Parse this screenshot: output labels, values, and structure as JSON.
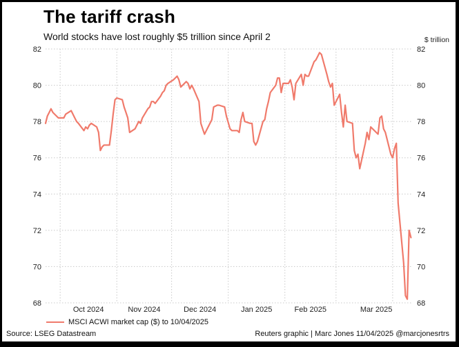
{
  "header": {
    "title": "The tariff crash",
    "subtitle": "World stocks have lost roughly $5 trillion since April 2",
    "unit_label": "$ trillion"
  },
  "footer": {
    "legend_label": "MSCI ACWI market cap ($) to 10/04/2025",
    "source": "Source: LSEG Datastream",
    "credit": "Reuters graphic | Marc Jones 11/04/2025 @marcjonesrtrs"
  },
  "colors": {
    "series": "#f07a6b",
    "grid": "#c8c8c8",
    "text": "#222222"
  },
  "chart_data": {
    "type": "line",
    "title": "The tariff crash",
    "subtitle": "World stocks have lost roughly $5 trillion since April 2",
    "ylabel": "$ trillion",
    "ylim": [
      68,
      82
    ],
    "yticks": [
      68,
      70,
      72,
      74,
      76,
      78,
      80,
      82
    ],
    "y_axes": "both",
    "grid": "dotted",
    "legend_position": "bottom-left",
    "xlim": [
      "2024-09-23",
      "2025-04-11"
    ],
    "xtick_labels": [
      "Oct 2024",
      "Nov 2024",
      "Dec 2024",
      "Jan 2025",
      "Feb 2025",
      "Mar 2025"
    ],
    "xtick_dates": [
      "2024-10-01",
      "2024-11-01",
      "2024-12-01",
      "2025-01-01",
      "2025-02-01",
      "2025-03-01"
    ],
    "series": [
      {
        "name": "MSCI ACWI market cap ($) to 10/04/2025",
        "color": "#f07a6b",
        "points": [
          [
            "2024-09-23",
            77.9
          ],
          [
            "2024-09-24",
            78.3
          ],
          [
            "2024-09-25",
            78.5
          ],
          [
            "2024-09-26",
            78.7
          ],
          [
            "2024-09-27",
            78.5
          ],
          [
            "2024-09-30",
            78.2
          ],
          [
            "2024-10-01",
            78.2
          ],
          [
            "2024-10-02",
            78.2
          ],
          [
            "2024-10-03",
            78.2
          ],
          [
            "2024-10-04",
            78.4
          ],
          [
            "2024-10-07",
            78.6
          ],
          [
            "2024-10-08",
            78.4
          ],
          [
            "2024-10-09",
            78.2
          ],
          [
            "2024-10-10",
            78.0
          ],
          [
            "2024-10-11",
            77.9
          ],
          [
            "2024-10-14",
            77.5
          ],
          [
            "2024-10-15",
            77.7
          ],
          [
            "2024-10-16",
            77.6
          ],
          [
            "2024-10-17",
            77.8
          ],
          [
            "2024-10-18",
            77.9
          ],
          [
            "2024-10-21",
            77.7
          ],
          [
            "2024-10-22",
            77.4
          ],
          [
            "2024-10-23",
            76.4
          ],
          [
            "2024-10-24",
            76.6
          ],
          [
            "2024-10-25",
            76.7
          ],
          [
            "2024-10-28",
            76.7
          ],
          [
            "2024-10-29",
            77.5
          ],
          [
            "2024-10-30",
            78.4
          ],
          [
            "2024-10-31",
            79.2
          ],
          [
            "2024-11-01",
            79.3
          ],
          [
            "2024-11-04",
            79.2
          ],
          [
            "2024-11-05",
            78.8
          ],
          [
            "2024-11-06",
            78.5
          ],
          [
            "2024-11-07",
            78.2
          ],
          [
            "2024-11-08",
            77.4
          ],
          [
            "2024-11-11",
            77.6
          ],
          [
            "2024-11-12",
            77.8
          ],
          [
            "2024-11-13",
            78.0
          ],
          [
            "2024-11-14",
            77.9
          ],
          [
            "2024-11-15",
            78.2
          ],
          [
            "2024-11-18",
            78.7
          ],
          [
            "2024-11-19",
            78.8
          ],
          [
            "2024-11-20",
            79.1
          ],
          [
            "2024-11-21",
            79.1
          ],
          [
            "2024-11-22",
            79.0
          ],
          [
            "2024-11-25",
            79.4
          ],
          [
            "2024-11-26",
            79.6
          ],
          [
            "2024-11-27",
            79.7
          ],
          [
            "2024-11-28",
            80.0
          ],
          [
            "2024-11-29",
            80.1
          ],
          [
            "2024-12-02",
            80.3
          ],
          [
            "2024-12-03",
            80.4
          ],
          [
            "2024-12-04",
            80.5
          ],
          [
            "2024-12-05",
            80.3
          ],
          [
            "2024-12-06",
            79.9
          ],
          [
            "2024-12-09",
            80.2
          ],
          [
            "2024-12-10",
            80.1
          ],
          [
            "2024-12-11",
            79.8
          ],
          [
            "2024-12-12",
            80.0
          ],
          [
            "2024-12-13",
            79.8
          ],
          [
            "2024-12-16",
            79.1
          ],
          [
            "2024-12-17",
            77.9
          ],
          [
            "2024-12-18",
            77.6
          ],
          [
            "2024-12-19",
            77.3
          ],
          [
            "2024-12-20",
            77.5
          ],
          [
            "2024-12-23",
            78.1
          ],
          [
            "2024-12-24",
            78.8
          ],
          [
            "2024-12-26",
            78.9
          ],
          [
            "2024-12-27",
            78.9
          ],
          [
            "2024-12-30",
            78.8
          ],
          [
            "2024-12-31",
            78.3
          ],
          [
            "2025-01-02",
            77.6
          ],
          [
            "2025-01-03",
            77.5
          ],
          [
            "2025-01-06",
            77.5
          ],
          [
            "2025-01-07",
            77.4
          ],
          [
            "2025-01-08",
            78.1
          ],
          [
            "2025-01-09",
            78.5
          ],
          [
            "2025-01-10",
            78.0
          ],
          [
            "2025-01-13",
            77.9
          ],
          [
            "2025-01-14",
            77.9
          ],
          [
            "2025-01-15",
            76.9
          ],
          [
            "2025-01-16",
            76.7
          ],
          [
            "2025-01-17",
            76.9
          ],
          [
            "2025-01-20",
            78.0
          ],
          [
            "2025-01-21",
            78.1
          ],
          [
            "2025-01-22",
            78.7
          ],
          [
            "2025-01-23",
            79.1
          ],
          [
            "2025-01-24",
            79.6
          ],
          [
            "2025-01-27",
            80.0
          ],
          [
            "2025-01-28",
            80.4
          ],
          [
            "2025-01-29",
            80.4
          ],
          [
            "2025-01-30",
            79.6
          ],
          [
            "2025-01-31",
            80.1
          ],
          [
            "2025-02-03",
            80.1
          ],
          [
            "2025-02-04",
            80.3
          ],
          [
            "2025-02-05",
            79.9
          ],
          [
            "2025-02-06",
            79.2
          ],
          [
            "2025-02-07",
            80.1
          ],
          [
            "2025-02-10",
            80.6
          ],
          [
            "2025-02-11",
            80.0
          ],
          [
            "2025-02-12",
            80.6
          ],
          [
            "2025-02-13",
            80.5
          ],
          [
            "2025-02-14",
            80.5
          ],
          [
            "2025-02-17",
            81.3
          ],
          [
            "2025-02-18",
            81.4
          ],
          [
            "2025-02-19",
            81.6
          ],
          [
            "2025-02-20",
            81.8
          ],
          [
            "2025-02-21",
            81.7
          ],
          [
            "2025-02-24",
            80.6
          ],
          [
            "2025-02-25",
            80.2
          ],
          [
            "2025-02-26",
            79.9
          ],
          [
            "2025-02-27",
            80.1
          ],
          [
            "2025-02-28",
            78.9
          ],
          [
            "2025-03-03",
            79.5
          ],
          [
            "2025-03-04",
            78.5
          ],
          [
            "2025-03-05",
            77.7
          ],
          [
            "2025-03-06",
            78.9
          ],
          [
            "2025-03-07",
            78.0
          ],
          [
            "2025-03-10",
            77.9
          ],
          [
            "2025-03-11",
            76.4
          ],
          [
            "2025-03-12",
            76.0
          ],
          [
            "2025-03-13",
            76.2
          ],
          [
            "2025-03-14",
            75.4
          ],
          [
            "2025-03-17",
            76.8
          ],
          [
            "2025-03-18",
            77.4
          ],
          [
            "2025-03-19",
            77.0
          ],
          [
            "2025-03-20",
            77.7
          ],
          [
            "2025-03-21",
            77.6
          ],
          [
            "2025-03-24",
            77.3
          ],
          [
            "2025-03-25",
            78.2
          ],
          [
            "2025-03-26",
            78.3
          ],
          [
            "2025-03-27",
            77.6
          ],
          [
            "2025-03-28",
            77.4
          ],
          [
            "2025-03-31",
            76.2
          ],
          [
            "2025-04-01",
            76.0
          ],
          [
            "2025-04-02",
            76.5
          ],
          [
            "2025-04-03",
            76.8
          ],
          [
            "2025-04-04",
            73.5
          ],
          [
            "2025-04-07",
            70.2
          ],
          [
            "2025-04-08",
            68.4
          ],
          [
            "2025-04-09",
            68.2
          ],
          [
            "2025-04-10",
            72.0
          ],
          [
            "2025-04-11",
            71.6
          ]
        ]
      }
    ]
  }
}
